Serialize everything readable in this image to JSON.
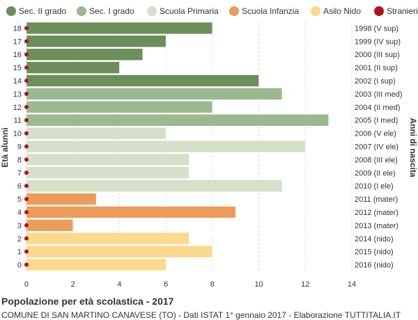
{
  "chart_data": {
    "type": "bar",
    "orientation": "horizontal",
    "title": "Popolazione per età scolastica - 2017",
    "subtitle": "COMUNE DI SAN MARTINO CANAVESE (TO) - Dati ISTAT 1° gennaio 2017 - Elaborazione TUTTITALIA.IT",
    "ylabel": "Età alunni",
    "ylabel_right": "Anni di nascita",
    "xlim": [
      0,
      14
    ],
    "xticks": [
      "0",
      "2",
      "4",
      "6",
      "8",
      "10",
      "12",
      "14"
    ],
    "grid": true,
    "legend_position": "top",
    "legend": [
      {
        "name": "Sec. II grado",
        "color": "#6b8e5a"
      },
      {
        "name": "Sec. I grado",
        "color": "#9cb88f"
      },
      {
        "name": "Scuola Primaria",
        "color": "#d4e0c8"
      },
      {
        "name": "Scuola Infanzia",
        "color": "#eb9c5a"
      },
      {
        "name": "Asilo Nido",
        "color": "#fcd98c"
      },
      {
        "name": "Stranieri",
        "color": "#b8101a"
      }
    ],
    "bars": [
      {
        "age": "18",
        "birth": "1998 (V sup)",
        "value": 8,
        "group": 0,
        "stranieri": 0
      },
      {
        "age": "17",
        "birth": "1999 (IV sup)",
        "value": 6,
        "group": 0,
        "stranieri": 0
      },
      {
        "age": "16",
        "birth": "2000 (III sup)",
        "value": 5,
        "group": 0,
        "stranieri": 0
      },
      {
        "age": "15",
        "birth": "2001 (II sup)",
        "value": 4,
        "group": 0,
        "stranieri": 0
      },
      {
        "age": "14",
        "birth": "2002 (I sup)",
        "value": 10,
        "group": 0,
        "stranieri": 0
      },
      {
        "age": "13",
        "birth": "2003 (III med)",
        "value": 11,
        "group": 1,
        "stranieri": 0
      },
      {
        "age": "12",
        "birth": "2004 (II med)",
        "value": 8,
        "group": 1,
        "stranieri": 0
      },
      {
        "age": "11",
        "birth": "2005 (I med)",
        "value": 13,
        "group": 1,
        "stranieri": 0
      },
      {
        "age": "10",
        "birth": "2006 (V ele)",
        "value": 6,
        "group": 2,
        "stranieri": 0
      },
      {
        "age": "9",
        "birth": "2007 (IV ele)",
        "value": 12,
        "group": 2,
        "stranieri": 0
      },
      {
        "age": "8",
        "birth": "2008 (III ele)",
        "value": 7,
        "group": 2,
        "stranieri": 0
      },
      {
        "age": "7",
        "birth": "2009 (II ele)",
        "value": 7,
        "group": 2,
        "stranieri": 0
      },
      {
        "age": "6",
        "birth": "2010 (I ele)",
        "value": 11,
        "group": 2,
        "stranieri": 0
      },
      {
        "age": "5",
        "birth": "2011 (mater)",
        "value": 3,
        "group": 3,
        "stranieri": 0
      },
      {
        "age": "4",
        "birth": "2012 (mater)",
        "value": 9,
        "group": 3,
        "stranieri": 0
      },
      {
        "age": "3",
        "birth": "2013 (mater)",
        "value": 2,
        "group": 3,
        "stranieri": 0
      },
      {
        "age": "2",
        "birth": "2014 (nido)",
        "value": 7,
        "group": 4,
        "stranieri": 0
      },
      {
        "age": "1",
        "birth": "2015 (nido)",
        "value": 8,
        "group": 4,
        "stranieri": 0
      },
      {
        "age": "0",
        "birth": "2016 (nido)",
        "value": 6,
        "group": 4,
        "stranieri": 0
      }
    ]
  }
}
